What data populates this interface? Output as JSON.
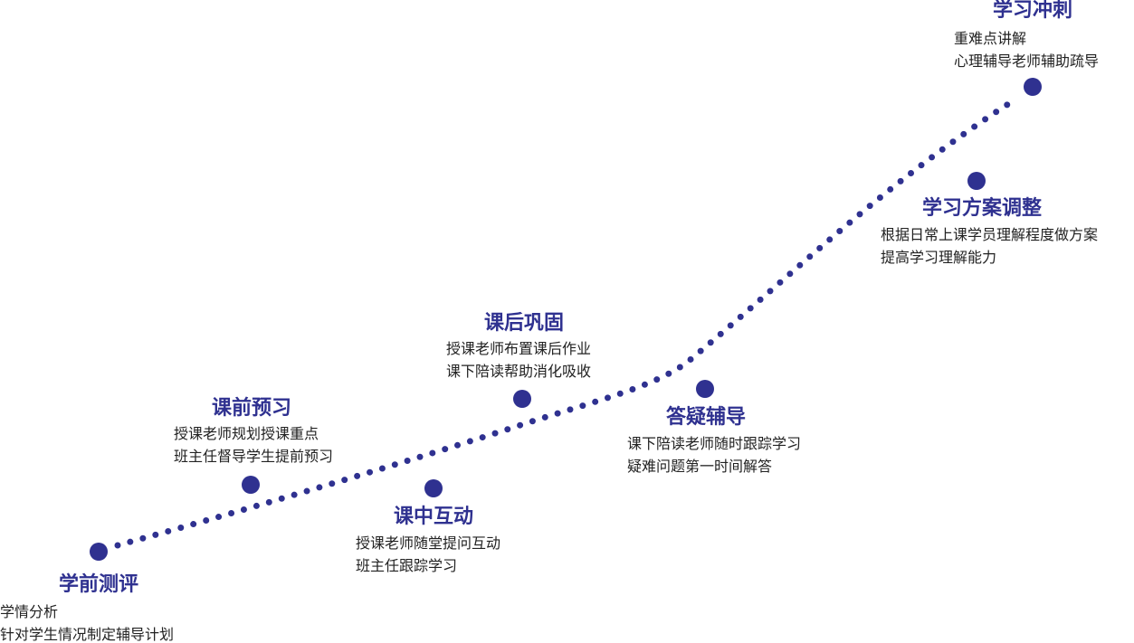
{
  "nodes": [
    {
      "title": "学前测评",
      "lines": [
        "学情分析",
        "针对学生情况制定辅导计划"
      ]
    },
    {
      "title": "课前预习",
      "lines": [
        "授课老师规划授课重点",
        "班主任督导学生提前预习"
      ]
    },
    {
      "title": "课中互动",
      "lines": [
        "授课老师随堂提问互动",
        "班主任跟踪学习"
      ]
    },
    {
      "title": "课后巩固",
      "lines": [
        "授课老师布置课后作业",
        "课下陪读帮助消化吸收"
      ]
    },
    {
      "title": "答疑辅导",
      "lines": [
        "课下陪读老师随时跟踪学习",
        "疑难问题第一时间解答"
      ]
    },
    {
      "title": "学习方案调整",
      "lines": [
        "根据日常上课学员理解程度做方案",
        "提高学习理解能力"
      ]
    },
    {
      "title": "学习冲刺",
      "lines": [
        "重难点讲解",
        "心理辅导老师辅助疏导"
      ]
    }
  ]
}
